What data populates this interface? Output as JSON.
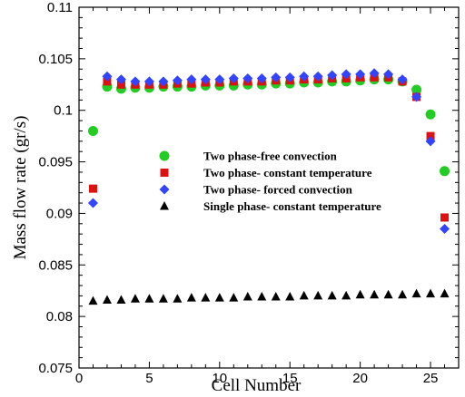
{
  "chart_data": {
    "type": "scatter",
    "xlabel": "Cell Number",
    "ylabel": "Mass flow rate (gr/s)",
    "xlim": [
      0,
      27
    ],
    "ylim": [
      0.075,
      0.11
    ],
    "xticks": [
      "0",
      "5",
      "10",
      "15",
      "20",
      "25"
    ],
    "yticks": [
      "0.075",
      "0.08",
      "0.085",
      "0.09",
      "0.095",
      "0.1",
      "0.105",
      "0.11"
    ],
    "xtick_values": [
      0,
      5,
      10,
      15,
      20,
      25
    ],
    "ytick_values": [
      0.075,
      0.08,
      0.085,
      0.09,
      0.095,
      0.1,
      0.105,
      0.11
    ],
    "grid": false,
    "legend_position": "center",
    "x": [
      1,
      2,
      3,
      4,
      5,
      6,
      7,
      8,
      9,
      10,
      11,
      12,
      13,
      14,
      15,
      16,
      17,
      18,
      19,
      20,
      21,
      22,
      23,
      24,
      25,
      26
    ],
    "series": [
      {
        "name": "Two phase-free convection",
        "marker": "circle",
        "color": "#22cc22",
        "values": [
          0.098,
          0.1023,
          0.1021,
          0.1022,
          0.1022,
          0.1023,
          0.1023,
          0.1023,
          0.1024,
          0.1024,
          0.1024,
          0.1025,
          0.1025,
          0.1026,
          0.1026,
          0.1027,
          0.1027,
          0.1028,
          0.1028,
          0.1029,
          0.103,
          0.103,
          0.1028,
          0.102,
          0.0996,
          0.0941
        ]
      },
      {
        "name": "Two phase- constant temperature",
        "marker": "square",
        "color": "#dd1111",
        "values": [
          0.0924,
          0.1028,
          0.1025,
          0.1025,
          0.1025,
          0.1025,
          0.1026,
          0.1026,
          0.1027,
          0.1027,
          0.1028,
          0.1028,
          0.1028,
          0.1029,
          0.1029,
          0.103,
          0.103,
          0.1031,
          0.1031,
          0.1032,
          0.1032,
          0.1032,
          0.1028,
          0.1013,
          0.0975,
          0.0896
        ]
      },
      {
        "name": "Two phase- forced convection",
        "marker": "diamond",
        "color": "#3344ff",
        "values": [
          0.091,
          0.1033,
          0.103,
          0.1028,
          0.1028,
          0.1028,
          0.1029,
          0.103,
          0.103,
          0.103,
          0.1031,
          0.1031,
          0.1031,
          0.1032,
          0.1032,
          0.1033,
          0.1033,
          0.1034,
          0.1035,
          0.1035,
          0.1036,
          0.1035,
          0.103,
          0.1013,
          0.097,
          0.0885
        ]
      },
      {
        "name": "Single phase- constant temperature",
        "marker": "triangle",
        "color": "#000000",
        "values": [
          0.0815,
          0.0816,
          0.0816,
          0.0817,
          0.0817,
          0.0817,
          0.0817,
          0.0818,
          0.0818,
          0.0818,
          0.0818,
          0.0819,
          0.0819,
          0.0819,
          0.0819,
          0.082,
          0.082,
          0.082,
          0.082,
          0.0821,
          0.0821,
          0.0821,
          0.0821,
          0.0822,
          0.0822,
          0.0822
        ]
      }
    ]
  }
}
